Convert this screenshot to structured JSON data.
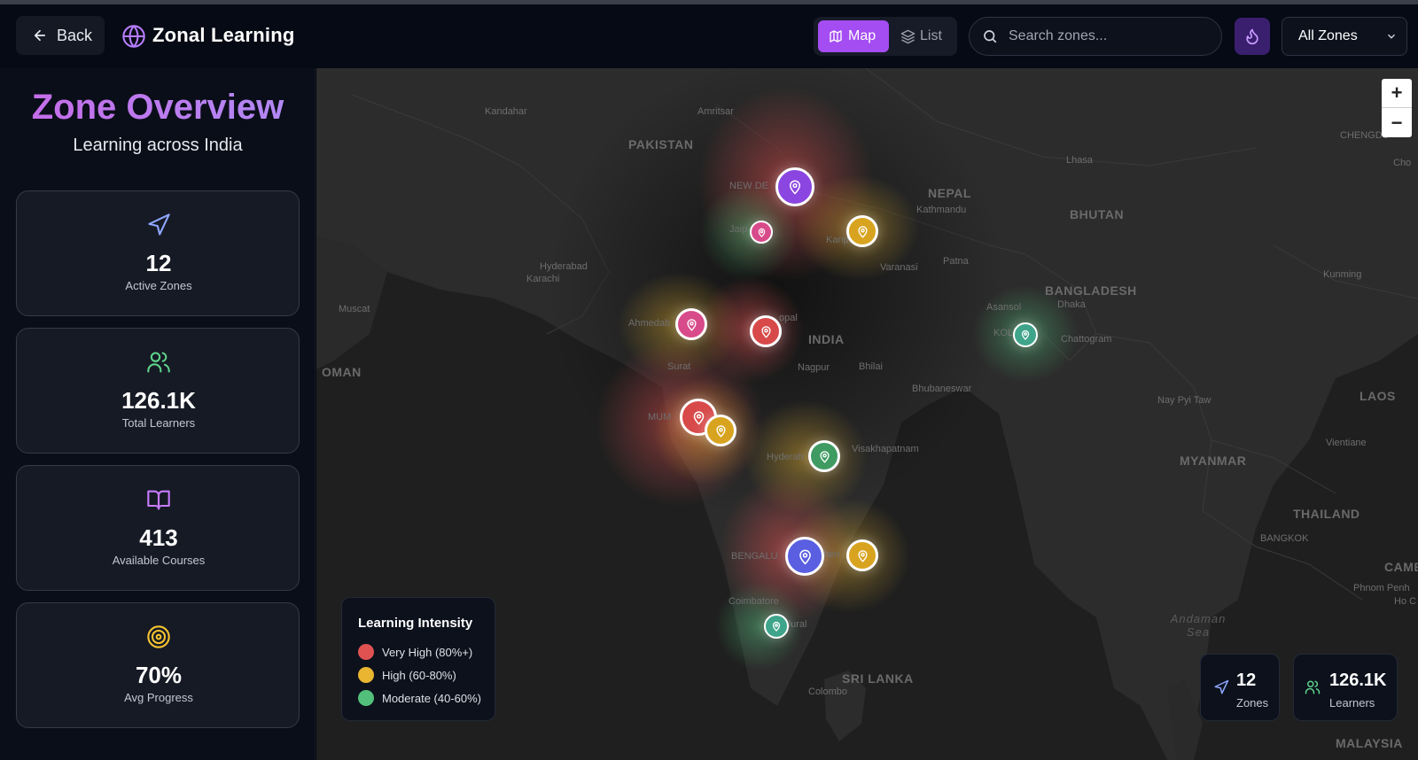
{
  "header": {
    "back_label": "Back",
    "app_title": "Zonal Learning",
    "view_toggle": {
      "map_label": "Map",
      "list_label": "List",
      "active": "Map"
    },
    "search": {
      "placeholder": "Search zones..."
    },
    "zone_filter": {
      "selected": "All Zones"
    }
  },
  "sidebar": {
    "title": "Zone Overview",
    "subtitle": "Learning across India",
    "stats": [
      {
        "value": "12",
        "label": "Active Zones",
        "icon": "navigation-icon",
        "color": "#8ea6ff"
      },
      {
        "value": "126.1K",
        "label": "Total Learners",
        "icon": "users-icon",
        "color": "#5fd38a"
      },
      {
        "value": "413",
        "label": "Available Courses",
        "icon": "book-open-icon",
        "color": "#c77dff"
      },
      {
        "value": "70%",
        "label": "Avg Progress",
        "icon": "target-icon",
        "color": "#f4c430"
      }
    ]
  },
  "map": {
    "labels": {
      "kandahar": "Kandahar",
      "amritsar": "Amritsar",
      "pakistan": "PAKISTAN",
      "new_delhi": "NEW DE",
      "nepal": "NEPAL",
      "kathmandu": "Kathmandu",
      "lhasa": "Lhasa",
      "bhutan": "BHUTAN",
      "chengdu": "CHENGDU",
      "cho": "Cho",
      "jaipur": "Jaip",
      "kanpur": "Kanpur",
      "varanasi": "Varanasi",
      "patna": "Patna",
      "hyderabad_pk": "Hyderabad",
      "karachi": "Karachi",
      "muscat": "Muscat",
      "bangladesh": "BANGLADESH",
      "dhaka": "Dhaka",
      "asansol": "Asansol",
      "kolkata": "KOLKAT",
      "chattogram": "Chattogram",
      "kunming": "Kunming",
      "ahmedabad": "Ahmedab",
      "bhopal": "opal",
      "india": "INDIA",
      "oman": "OMAN",
      "surat": "Surat",
      "nagpur": "Nagpur",
      "bhilai": "Bhilai",
      "bhubaneswar": "Bhubaneswar",
      "nay_pyi_taw": "Nay Pyi Taw",
      "laos": "LAOS",
      "mumbai": "MUM",
      "hyderabad": "Hyderab",
      "visakhapatnam": "Visakhapatnam",
      "vientiane": "Vientiane",
      "myanmar": "MYANMAR",
      "thailand": "THAILAND",
      "bangkok": "BANGKOK",
      "bengaluru": "BENGALU",
      "chennai": "hen",
      "camb": "CAMB",
      "phnom_penh": "Phnom Penh",
      "ho_c": "Ho C",
      "coimbatore": "Coimbatore",
      "madurai": "dural",
      "andaman_sea": "Andaman Sea",
      "sri_lanka": "SRI LANKA",
      "colombo": "Colombo",
      "malaysia": "MALAYSIA"
    },
    "zoom": {
      "in": "+",
      "out": "−"
    },
    "legend": {
      "title": "Learning Intensity",
      "items": [
        {
          "label": "Very High (80%+)",
          "color": "#e05252"
        },
        {
          "label": "High (60-80%)",
          "color": "#eab530"
        },
        {
          "label": "Moderate (40-60%)",
          "color": "#52c07a"
        }
      ]
    },
    "summary": {
      "zones_value": "12",
      "zones_label": "Zones",
      "learners_value": "126.1K",
      "learners_label": "Learners"
    }
  }
}
